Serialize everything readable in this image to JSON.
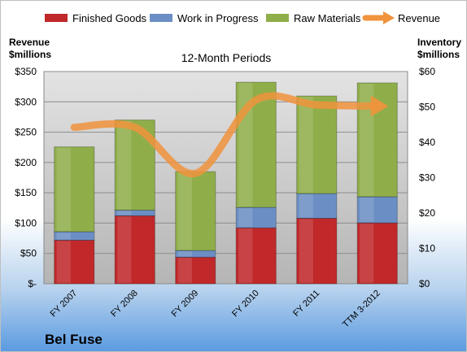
{
  "company": "Bel Fuse",
  "colors": {
    "finished": "#c0282a",
    "wip": "#6b8fc4",
    "raw": "#8fae4a",
    "revenue": "#f0933c",
    "plot_bg_top": "#e3e3e3",
    "plot_bg_bottom": "#b5b5b5"
  },
  "chart_data": {
    "type": "bar",
    "stacked": true,
    "title": "12-Month Periods",
    "categories": [
      "FY 2007",
      "FY 2008",
      "FY 2009",
      "FY 2010",
      "FY 2011",
      "TTM 3-2012"
    ],
    "left_axis": {
      "label_line1": "Revenue",
      "label_line2": "$millions",
      "range": [
        0,
        350
      ],
      "ticks": [
        0,
        50,
        100,
        150,
        200,
        250,
        300,
        350
      ],
      "tick_labels": [
        "$-",
        "$50",
        "$100",
        "$150",
        "$200",
        "$250",
        "$300",
        "$350"
      ]
    },
    "right_axis": {
      "label_line1": "Inventory",
      "label_line2": "$millions",
      "range": [
        0,
        60
      ],
      "ticks": [
        0,
        10,
        20,
        30,
        40,
        50,
        60
      ],
      "tick_labels": [
        "$0",
        "$10",
        "$20",
        "$30",
        "$40",
        "$50",
        "$60"
      ]
    },
    "series": [
      {
        "name": "Finished Goods",
        "axis": "right",
        "values": [
          12.3,
          19.2,
          7.5,
          15.8,
          18.5,
          17.2
        ]
      },
      {
        "name": "Work in Progress",
        "axis": "right",
        "values": [
          2.4,
          1.6,
          1.9,
          5.8,
          7.0,
          7.4
        ]
      },
      {
        "name": "Raw Materials",
        "axis": "right",
        "values": [
          24.0,
          25.5,
          22.3,
          35.4,
          27.6,
          32.2
        ]
      },
      {
        "name": "Revenue",
        "axis": "left",
        "type": "line",
        "values": [
          258,
          258,
          182,
          303,
          295,
          293
        ]
      }
    ],
    "grid": true,
    "legend": "top"
  }
}
